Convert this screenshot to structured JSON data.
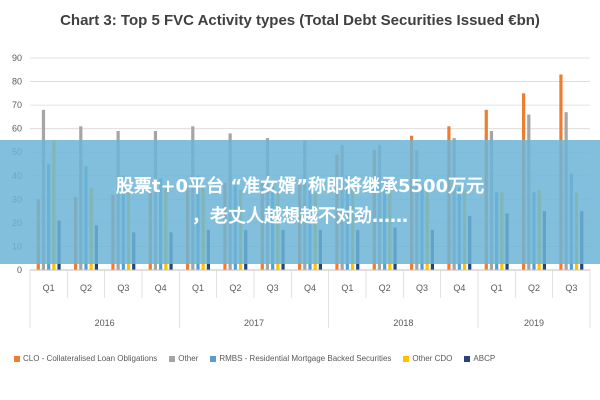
{
  "chart_data": {
    "type": "bar",
    "title": "Chart 3: Top 5 FVC Activity types (Total Debt Securities Issued €bn)",
    "categories": [
      "Q1",
      "Q2",
      "Q3",
      "Q4",
      "Q1",
      "Q2",
      "Q3",
      "Q4",
      "Q1",
      "Q2",
      "Q3",
      "Q4",
      "Q1",
      "Q2",
      "Q3"
    ],
    "groups": [
      {
        "label": "2016",
        "count": 4
      },
      {
        "label": "2017",
        "count": 4
      },
      {
        "label": "2018",
        "count": 4
      },
      {
        "label": "2019",
        "count": 3
      }
    ],
    "ylim": [
      0,
      90
    ],
    "yticks": [
      0,
      10,
      20,
      30,
      40,
      50,
      60,
      70,
      80,
      90
    ],
    "series": [
      {
        "name": "CLO - Collateralised Loan Obligations",
        "color": "#ED7D31",
        "values": [
          30,
          31,
          32,
          33,
          35,
          37,
          38,
          39,
          49,
          51,
          57,
          61,
          68,
          75,
          83
        ]
      },
      {
        "name": "Other",
        "color": "#A5A5A5",
        "values": [
          68,
          61,
          59,
          59,
          61,
          58,
          56,
          55,
          53,
          53,
          51,
          56,
          59,
          66,
          67
        ]
      },
      {
        "name": "RMBS - Residential Mortgage Backed Securities",
        "color": "#5B9BD5",
        "values": [
          45,
          44,
          40,
          39,
          40,
          38,
          37,
          36,
          40,
          38,
          36,
          35,
          33,
          33,
          41
        ]
      },
      {
        "name": "Other CDO",
        "color": "#FFC000",
        "values": [
          55,
          35,
          34,
          36,
          36,
          34,
          33,
          33,
          34,
          33,
          33,
          34,
          33,
          34,
          33
        ]
      },
      {
        "name": "ABCP",
        "color": "#264478",
        "values": [
          21,
          19,
          16,
          16,
          17,
          17,
          17,
          17,
          17,
          18,
          17,
          23,
          24,
          25,
          25
        ]
      }
    ],
    "grid": true,
    "legend_position": "bottom"
  },
  "banner": {
    "line1": "股票t+0平台 “准女婿”称即将继承5500万元",
    "line2": "，老丈人越想越不对劲……"
  }
}
